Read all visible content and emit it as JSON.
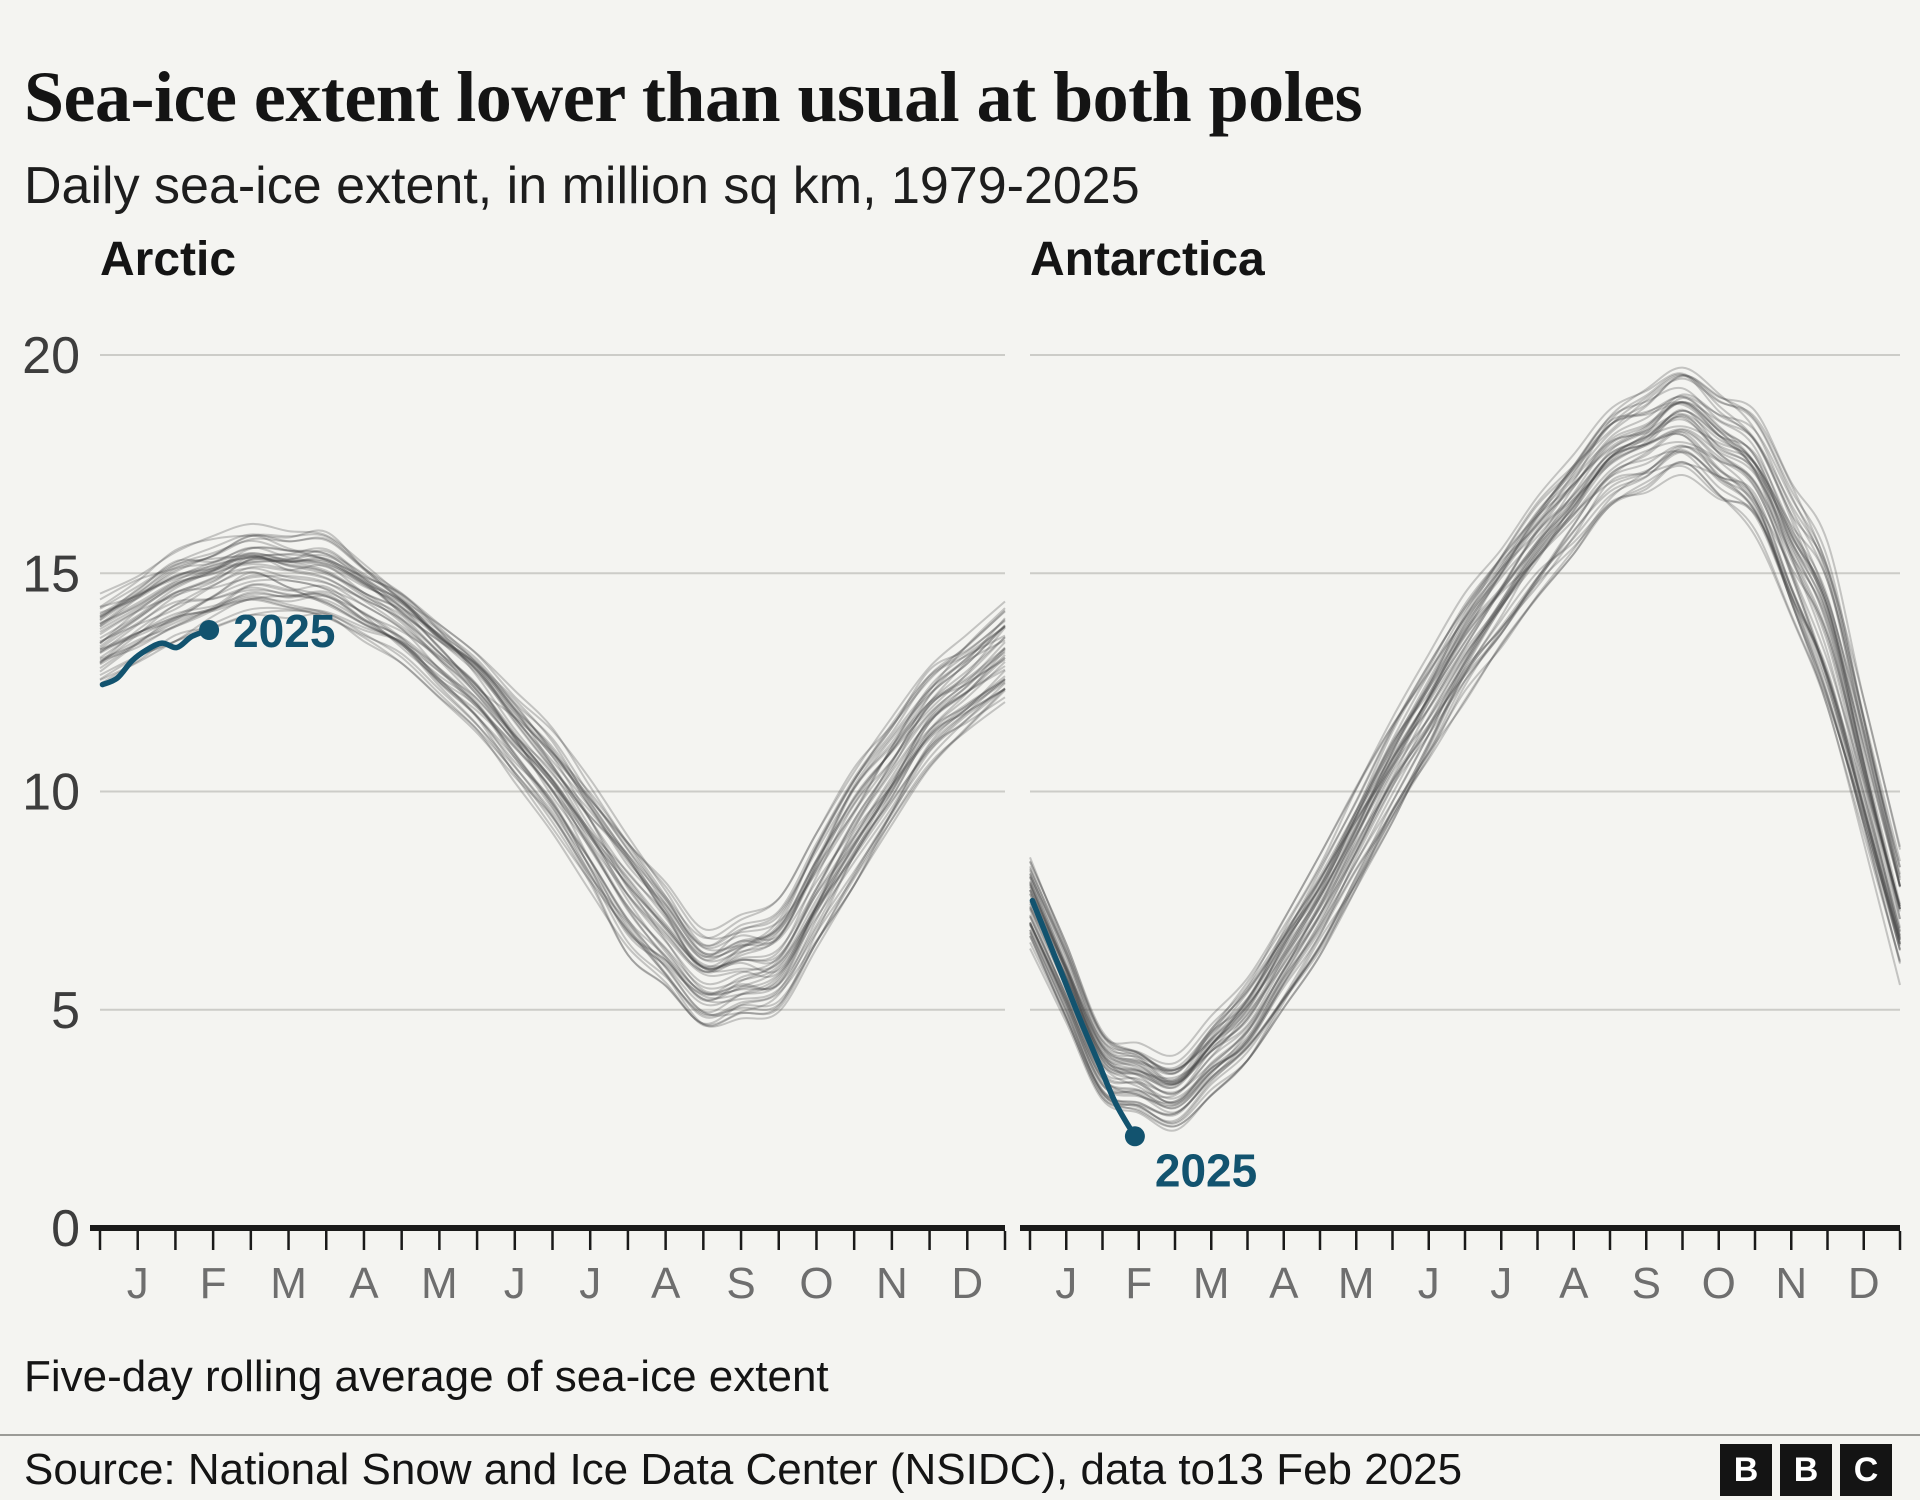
{
  "header": {
    "title": "Sea-ice extent lower than usual at both poles",
    "subtitle": "Daily sea-ice extent, in million sq km, 1979-2025"
  },
  "footnote": "Five-day rolling average of sea-ice extent",
  "source": "Source: National Snow and Ice Data Center (NSIDC), data to13 Feb 2025",
  "logo": {
    "letters": [
      "B",
      "B",
      "C"
    ]
  },
  "colors": {
    "background": "#f4f4f1",
    "highlight": "#12536f",
    "history_line": "#444444",
    "grid": "#ccccc8",
    "axis": "#1a1a1a",
    "month_label": "#6e6e6e",
    "value_label": "#3d3d3d"
  },
  "axes": {
    "y_ticks": [
      0,
      5,
      10,
      15,
      20
    ],
    "y_max": 20,
    "months": [
      "J",
      "F",
      "M",
      "A",
      "M",
      "J",
      "J",
      "A",
      "S",
      "O",
      "N",
      "D"
    ]
  },
  "chart_data": [
    {
      "type": "line",
      "title": "Arctic",
      "ylabel": "million sq km",
      "ylim": [
        0,
        20
      ],
      "x_unit": "day_of_year",
      "history_years": "1979-2024",
      "history_count": 46,
      "envelope_x_points": [
        "Jan 1",
        "Feb 1",
        "Mar 1",
        "Apr 1",
        "May 1",
        "Jun 1",
        "Jul 1",
        "Aug 1",
        "Sep 1",
        "Oct 1",
        "Nov 1",
        "Dec 1",
        "Dec 31"
      ],
      "envelope_min_by_month": [
        12.4,
        13.4,
        14.0,
        13.8,
        12.9,
        11.3,
        9.0,
        6.2,
        4.6,
        4.9,
        7.8,
        10.5,
        12.0
      ],
      "envelope_max_by_month": [
        14.6,
        15.6,
        16.2,
        16.0,
        14.8,
        13.3,
        11.5,
        9.2,
        6.9,
        7.6,
        10.6,
        12.9,
        14.4
      ],
      "series_2025": {
        "name": "2025",
        "points_day_value": [
          [
            1,
            12.45
          ],
          [
            7,
            12.6
          ],
          [
            13,
            13.0
          ],
          [
            19,
            13.25
          ],
          [
            25,
            13.4
          ],
          [
            31,
            13.3
          ],
          [
            37,
            13.55
          ],
          [
            44,
            13.7
          ]
        ],
        "latest_day": 44,
        "latest_date": "13 Feb 2025",
        "latest_value": 13.7
      }
    },
    {
      "type": "line",
      "title": "Antarctica",
      "ylabel": "million sq km",
      "ylim": [
        0,
        20
      ],
      "x_unit": "day_of_year",
      "history_years": "1979-2024",
      "history_count": 46,
      "envelope_x_points": [
        "Jan 1",
        "Feb 1",
        "Mar 1",
        "Apr 1",
        "May 1",
        "Jun 1",
        "Jul 1",
        "Aug 1",
        "Sep 1",
        "Oct 1",
        "Nov 1",
        "Dec 1",
        "Dec 31"
      ],
      "envelope_min_by_month": [
        6.3,
        2.9,
        2.2,
        3.8,
        6.2,
        9.2,
        12.0,
        14.4,
        16.4,
        17.2,
        15.8,
        11.5,
        5.5
      ],
      "envelope_max_by_month": [
        8.7,
        4.7,
        4.0,
        5.8,
        8.6,
        11.8,
        14.6,
        16.8,
        18.8,
        19.8,
        18.8,
        15.8,
        8.8
      ],
      "series_2025": {
        "name": "2025",
        "points_day_value": [
          [
            1,
            7.5
          ],
          [
            8,
            6.55
          ],
          [
            15,
            5.6
          ],
          [
            22,
            4.65
          ],
          [
            29,
            3.75
          ],
          [
            36,
            2.85
          ],
          [
            44,
            2.1
          ]
        ],
        "latest_day": 44,
        "latest_date": "13 Feb 2025",
        "latest_value": 2.1
      }
    }
  ]
}
